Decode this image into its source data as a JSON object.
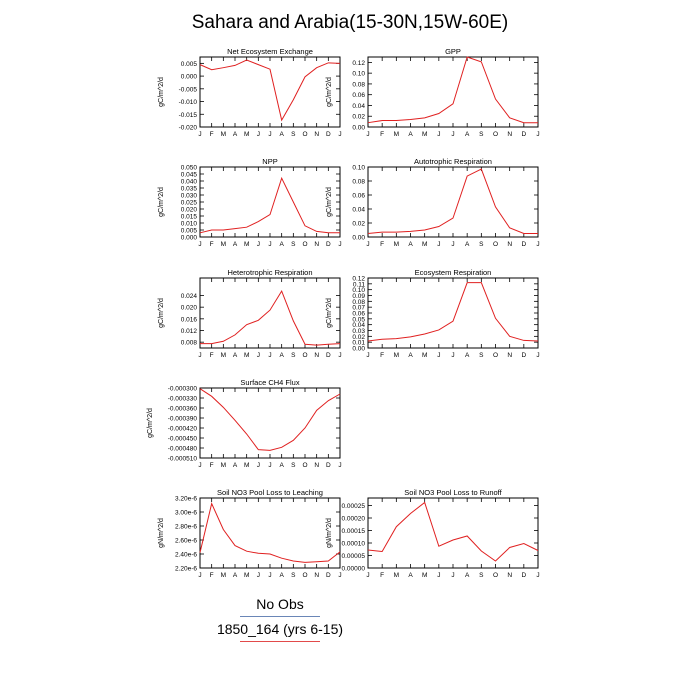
{
  "figure": {
    "title": "Sahara and Arabia(15-30N,15W-60E)",
    "legend": {
      "obs_label": "No Obs",
      "model_label": "1850_164 (yrs 6-15)",
      "model_color": "#e02020",
      "obs_color": "#6a86b7"
    }
  },
  "chart_data": [
    {
      "type": "line",
      "title": "Net Ecosystem Exchange",
      "ylabel": "gC/m^2/d",
      "x": [
        "J",
        "F",
        "M",
        "A",
        "M",
        "J",
        "J",
        "A",
        "S",
        "O",
        "N",
        "D",
        "J"
      ],
      "ylim": [
        -0.02,
        0.0075
      ],
      "yticks": [
        0.005,
        0.0,
        -0.005,
        -0.01,
        -0.015,
        -0.02
      ],
      "ytick_labels": [
        "0.005",
        "0.000",
        "-0.005",
        "-0.010",
        "-0.015",
        "-0.020"
      ],
      "series": [
        {
          "values": [
            0.0045,
            0.0025,
            0.0033,
            0.0042,
            0.0063,
            0.0045,
            0.0027,
            -0.0173,
            -0.0093,
            -0.0003,
            0.0033,
            0.0052,
            0.005
          ],
          "color": "#e02020"
        }
      ]
    },
    {
      "type": "line",
      "title": "GPP",
      "ylabel": "gC/m^2/d",
      "x": [
        "J",
        "F",
        "M",
        "A",
        "M",
        "J",
        "J",
        "A",
        "S",
        "O",
        "N",
        "D",
        "J"
      ],
      "ylim": [
        0,
        0.13
      ],
      "yticks": [
        0,
        0.02,
        0.04,
        0.06,
        0.08,
        0.1,
        0.12
      ],
      "ytick_labels": [
        "0.00",
        "0.02",
        "0.04",
        "0.06",
        "0.08",
        "0.10",
        "0.12"
      ],
      "series": [
        {
          "values": [
            0.008,
            0.012,
            0.012,
            0.014,
            0.017,
            0.025,
            0.043,
            0.13,
            0.121,
            0.052,
            0.017,
            0.008,
            0.008
          ],
          "color": "#e02020"
        }
      ]
    },
    {
      "type": "line",
      "title": "NPP",
      "ylabel": "gC/m^2/d",
      "x": [
        "J",
        "F",
        "M",
        "A",
        "M",
        "J",
        "J",
        "A",
        "S",
        "O",
        "N",
        "D",
        "J"
      ],
      "ylim": [
        0,
        0.05
      ],
      "yticks": [
        0,
        0.005,
        0.01,
        0.015,
        0.02,
        0.025,
        0.03,
        0.035,
        0.04,
        0.045,
        0.05
      ],
      "ytick_labels": [
        "0.000",
        "0.005",
        "0.010",
        "0.015",
        "0.020",
        "0.025",
        "0.030",
        "0.035",
        "0.040",
        "0.045",
        "0.050"
      ],
      "series": [
        {
          "values": [
            0.003,
            0.005,
            0.005,
            0.006,
            0.007,
            0.011,
            0.016,
            0.042,
            0.025,
            0.008,
            0.004,
            0.003,
            0.003
          ],
          "color": "#e02020"
        }
      ]
    },
    {
      "type": "line",
      "title": "Autotrophic Respiration",
      "ylabel": "gC/m^2/d",
      "x": [
        "J",
        "F",
        "M",
        "A",
        "M",
        "J",
        "J",
        "A",
        "S",
        "O",
        "N",
        "D",
        "J"
      ],
      "ylim": [
        0,
        0.1
      ],
      "yticks": [
        0,
        0.02,
        0.04,
        0.06,
        0.08,
        0.1
      ],
      "ytick_labels": [
        "0.00",
        "0.02",
        "0.04",
        "0.06",
        "0.08",
        "0.10"
      ],
      "series": [
        {
          "values": [
            0.005,
            0.007,
            0.007,
            0.008,
            0.01,
            0.015,
            0.027,
            0.087,
            0.097,
            0.043,
            0.013,
            0.005,
            0.005
          ],
          "color": "#e02020"
        }
      ]
    },
    {
      "type": "line",
      "title": "Heterotrophic Respiration",
      "ylabel": "gC/m^2/d",
      "x": [
        "J",
        "F",
        "M",
        "A",
        "M",
        "J",
        "J",
        "A",
        "S",
        "O",
        "N",
        "D",
        "J"
      ],
      "ylim": [
        0.006,
        0.03
      ],
      "yticks": [
        0.008,
        0.012,
        0.016,
        0.02,
        0.024
      ],
      "ytick_labels": [
        "0.008",
        "0.012",
        "0.016",
        "0.020",
        "0.024"
      ],
      "series": [
        {
          "values": [
            0.0075,
            0.0075,
            0.0083,
            0.0105,
            0.014,
            0.0155,
            0.019,
            0.0255,
            0.0153,
            0.0073,
            0.007,
            0.0073,
            0.0075
          ],
          "color": "#e02020"
        }
      ]
    },
    {
      "type": "line",
      "title": "Ecosystem Respiration",
      "ylabel": "gC/m^2/d",
      "x": [
        "J",
        "F",
        "M",
        "A",
        "M",
        "J",
        "J",
        "A",
        "S",
        "O",
        "N",
        "D",
        "J"
      ],
      "ylim": [
        0,
        0.12
      ],
      "yticks": [
        0,
        0.01,
        0.02,
        0.03,
        0.04,
        0.05,
        0.06,
        0.07,
        0.08,
        0.09,
        0.1,
        0.11,
        0.12
      ],
      "ytick_labels": [
        "0.00",
        "0.01",
        "0.02",
        "0.03",
        "0.04",
        "0.05",
        "0.06",
        "0.07",
        "0.08",
        "0.09",
        "0.10",
        "0.11",
        "0.12"
      ],
      "series": [
        {
          "values": [
            0.012,
            0.015,
            0.016,
            0.019,
            0.024,
            0.031,
            0.046,
            0.112,
            0.112,
            0.051,
            0.02,
            0.013,
            0.012
          ],
          "color": "#e02020"
        }
      ]
    },
    {
      "type": "line",
      "title": "Surface CH4 Flux",
      "ylabel": "gC/m^2/d",
      "x": [
        "J",
        "F",
        "M",
        "A",
        "M",
        "J",
        "J",
        "A",
        "S",
        "O",
        "N",
        "D",
        "J"
      ],
      "ylim": [
        -0.00051,
        -0.0003
      ],
      "yticks": [
        -0.0003,
        -0.00033,
        -0.00036,
        -0.00039,
        -0.00042,
        -0.00045,
        -0.00048,
        -0.00051
      ],
      "ytick_labels": [
        "-0.000300",
        "-0.000330",
        "-0.000360",
        "-0.000390",
        "-0.000420",
        "-0.000450",
        "-0.000480",
        "-0.000510"
      ],
      "series": [
        {
          "values": [
            -0.000302,
            -0.000325,
            -0.000358,
            -0.000397,
            -0.000438,
            -0.000485,
            -0.000487,
            -0.000478,
            -0.000457,
            -0.00042,
            -0.000367,
            -0.000338,
            -0.000318
          ],
          "color": "#e02020"
        }
      ]
    },
    {
      "type": "line",
      "title": "Soil NO3 Pool Loss to Leaching",
      "ylabel": "gN/m^2/d",
      "x": [
        "J",
        "F",
        "M",
        "A",
        "M",
        "J",
        "J",
        "A",
        "S",
        "O",
        "N",
        "D",
        "J"
      ],
      "ylim": [
        2.2e-06,
        3.2e-06
      ],
      "yticks": [
        2.2e-06,
        2.4e-06,
        2.6e-06,
        2.8e-06,
        3e-06,
        3.2e-06
      ],
      "ytick_labels": [
        "2.20e-6",
        "2.40e-6",
        "2.60e-6",
        "2.80e-6",
        "3.00e-6",
        "3.20e-6"
      ],
      "series": [
        {
          "values": [
            2.42e-06,
            3.12e-06,
            2.75e-06,
            2.52e-06,
            2.44e-06,
            2.41e-06,
            2.4e-06,
            2.34e-06,
            2.3e-06,
            2.28e-06,
            2.29e-06,
            2.3e-06,
            2.43e-06
          ],
          "color": "#e02020"
        }
      ]
    },
    {
      "type": "line",
      "title": "Soil NO3 Pool Loss to Runoff",
      "ylabel": "gN/m^2/d",
      "x": [
        "J",
        "F",
        "M",
        "A",
        "M",
        "J",
        "J",
        "A",
        "S",
        "O",
        "N",
        "D",
        "J"
      ],
      "ylim": [
        0,
        0.00028
      ],
      "yticks": [
        0,
        5e-05,
        0.0001,
        0.00015,
        0.0002,
        0.00025
      ],
      "ytick_labels": [
        "0.00000",
        "0.00005",
        "0.00010",
        "0.00015",
        "0.00020",
        "0.00025"
      ],
      "series": [
        {
          "values": [
            7.2e-05,
            6.6e-05,
            0.000165,
            0.000218,
            0.000262,
            8.7e-05,
            0.000112,
            0.000128,
            6.8e-05,
            2.8e-05,
            8.2e-05,
            9.8e-05,
            7e-05
          ],
          "color": "#e02020"
        }
      ]
    }
  ]
}
